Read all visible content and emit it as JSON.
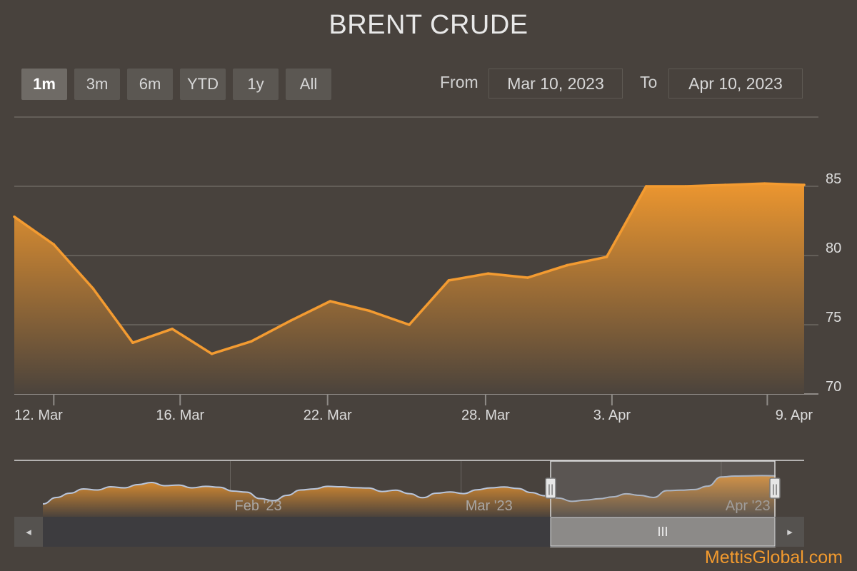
{
  "chart_data": {
    "type": "area",
    "title": "BRENT CRUDE",
    "ylim": [
      70,
      90
    ],
    "y_ticks": [
      70,
      75,
      80,
      85
    ],
    "x_tick_labels": [
      "12. Mar",
      "16. Mar",
      "22. Mar",
      "28. Mar",
      "3. Apr",
      "9. Apr"
    ],
    "x_tick_indices": [
      1.5,
      6.3,
      11.9,
      17.9,
      22.7,
      28.6
    ],
    "series": [
      {
        "values": [
          82.8,
          80.8,
          77.6,
          73.7,
          74.7,
          72.9,
          73.8,
          75.3,
          76.7,
          76.0,
          75.0,
          78.2,
          78.7,
          78.4,
          79.3,
          79.9,
          85.0,
          85.0,
          85.1,
          85.2,
          85.1
        ],
        "x_positions": [
          0,
          1.5,
          3,
          4.5,
          6,
          7.5,
          9,
          10.5,
          12,
          13.5,
          15,
          16.5,
          18,
          19.5,
          21,
          22.5,
          24,
          25.5,
          27,
          28.5,
          30
        ]
      }
    ],
    "grid": true,
    "line_color": "#f39b31",
    "fill_top_color": "#ec962f",
    "fill_bottom_color": "#4b433c",
    "navigator": {
      "month_labels": [
        "Feb '23",
        "Mar '23",
        "Apr '23"
      ],
      "values": [
        72,
        75,
        77,
        79,
        78.5,
        80,
        79.5,
        81,
        82,
        80.5,
        80.8,
        79.5,
        80.2,
        79.8,
        78,
        77.5,
        74.5,
        73.5,
        76,
        78.5,
        79,
        80.2,
        80,
        79.6,
        79.4,
        77.8,
        78.4,
        76.8,
        74.9,
        77,
        77.6,
        76.8,
        78.6,
        79.5,
        79.9,
        79.2,
        77.3,
        75.8,
        74.7,
        73.2,
        73.8,
        74.4,
        75.3,
        76.7,
        76.0,
        75.0,
        78.2,
        78.4,
        78.7,
        80.3,
        84.6,
        85.0,
        85.1,
        85.2,
        85.1
      ],
      "selected_start_index": 38,
      "selected_end_index": 55
    }
  },
  "range_selector": {
    "buttons": [
      {
        "label": "1m",
        "active": true
      },
      {
        "label": "3m",
        "active": false
      },
      {
        "label": "6m",
        "active": false
      },
      {
        "label": "YTD",
        "active": false
      },
      {
        "label": "1y",
        "active": false
      },
      {
        "label": "All",
        "active": false
      }
    ],
    "from_label": "From",
    "from_value": "Mar 10, 2023",
    "to_label": "To",
    "to_value": "Apr 10, 2023"
  },
  "scrollbar": {
    "left_arrow": "◂",
    "right_arrow": "▸",
    "grip": "III"
  },
  "navigator_handles": {
    "grip": "||"
  },
  "watermark": "MettisGlobal.com"
}
